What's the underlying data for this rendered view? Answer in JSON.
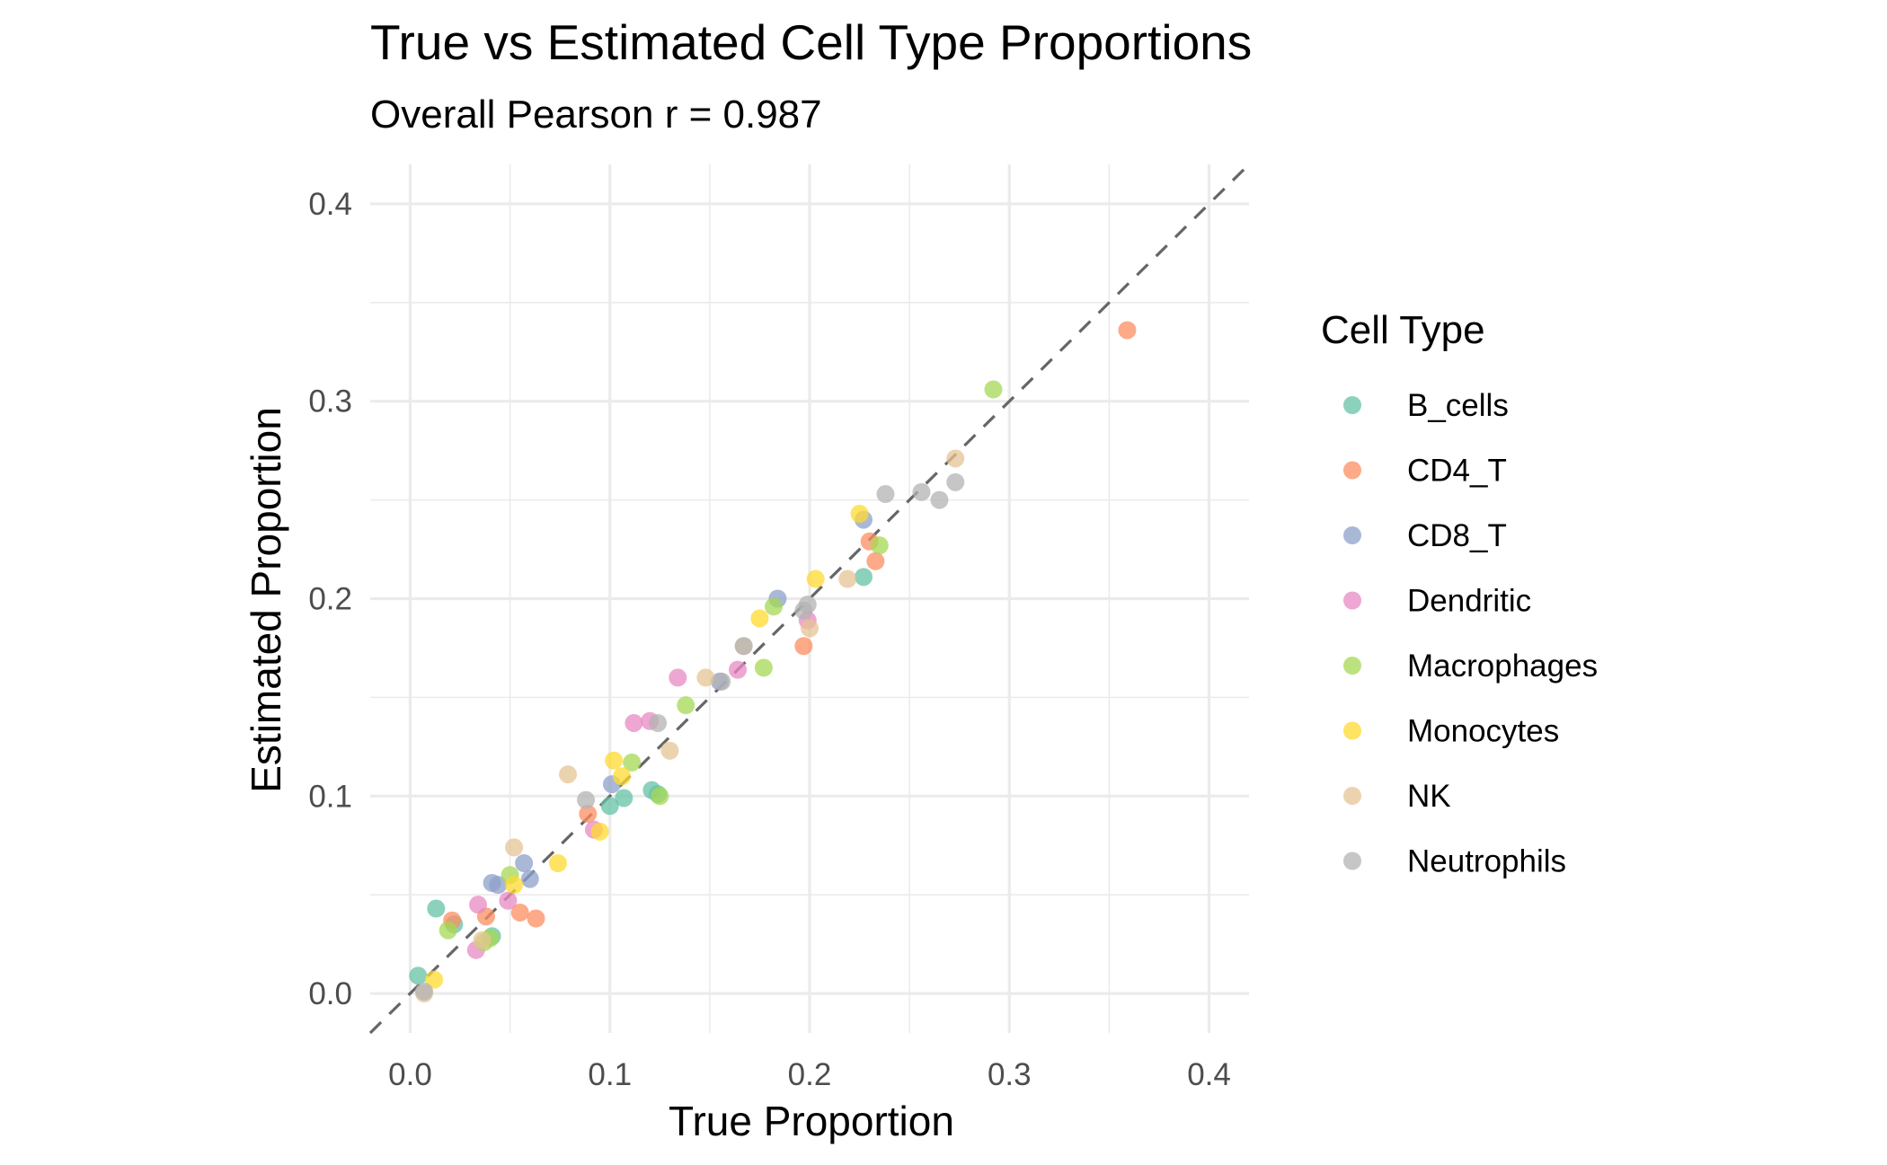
{
  "chart_data": {
    "type": "scatter",
    "title": "True vs Estimated Cell Type Proportions",
    "subtitle": "Overall Pearson r = 0.987",
    "xlabel": "True Proportion",
    "ylabel": "Estimated Proportion",
    "xlim": [
      -0.02,
      0.42
    ],
    "ylim": [
      -0.02,
      0.42
    ],
    "x_ticks": [
      0.0,
      0.1,
      0.2,
      0.3,
      0.4
    ],
    "y_ticks": [
      0.0,
      0.1,
      0.2,
      0.3,
      0.4
    ],
    "x_tick_labels": [
      "0.0",
      "0.1",
      "0.2",
      "0.3",
      "0.4"
    ],
    "y_tick_labels": [
      "0.0",
      "0.1",
      "0.2",
      "0.3",
      "0.4"
    ],
    "grid": true,
    "reference_line": "dashed y = x",
    "legend": {
      "title": "Cell Type",
      "placement": "right"
    },
    "series": [
      {
        "name": "B_cells",
        "color": "#66c2a5",
        "points": [
          [
            0.004,
            0.009
          ],
          [
            0.013,
            0.043
          ],
          [
            0.022,
            0.035
          ],
          [
            0.041,
            0.029
          ],
          [
            0.1,
            0.095
          ],
          [
            0.107,
            0.099
          ],
          [
            0.121,
            0.103
          ],
          [
            0.124,
            0.101
          ],
          [
            0.227,
            0.211
          ]
        ]
      },
      {
        "name": "CD4_T",
        "color": "#fc8d62",
        "points": [
          [
            0.021,
            0.037
          ],
          [
            0.038,
            0.039
          ],
          [
            0.055,
            0.041
          ],
          [
            0.063,
            0.038
          ],
          [
            0.089,
            0.091
          ],
          [
            0.197,
            0.176
          ],
          [
            0.23,
            0.229
          ],
          [
            0.233,
            0.219
          ],
          [
            0.359,
            0.336
          ]
        ]
      },
      {
        "name": "CD8_T",
        "color": "#8da0cb",
        "points": [
          [
            0.041,
            0.056
          ],
          [
            0.044,
            0.055
          ],
          [
            0.057,
            0.066
          ],
          [
            0.06,
            0.058
          ],
          [
            0.101,
            0.106
          ],
          [
            0.155,
            0.158
          ],
          [
            0.184,
            0.2
          ],
          [
            0.227,
            0.24
          ]
        ]
      },
      {
        "name": "Dendritic",
        "color": "#e78ac3",
        "points": [
          [
            0.033,
            0.022
          ],
          [
            0.034,
            0.045
          ],
          [
            0.049,
            0.047
          ],
          [
            0.092,
            0.083
          ],
          [
            0.112,
            0.137
          ],
          [
            0.12,
            0.138
          ],
          [
            0.134,
            0.16
          ],
          [
            0.164,
            0.164
          ],
          [
            0.199,
            0.189
          ]
        ]
      },
      {
        "name": "Macrophages",
        "color": "#a6d854",
        "points": [
          [
            0.019,
            0.032
          ],
          [
            0.037,
            0.026
          ],
          [
            0.04,
            0.028
          ],
          [
            0.05,
            0.06
          ],
          [
            0.111,
            0.117
          ],
          [
            0.125,
            0.1
          ],
          [
            0.138,
            0.146
          ],
          [
            0.177,
            0.165
          ],
          [
            0.182,
            0.196
          ],
          [
            0.235,
            0.227
          ],
          [
            0.292,
            0.306
          ]
        ]
      },
      {
        "name": "Monocytes",
        "color": "#ffd92f",
        "points": [
          [
            0.012,
            0.007
          ],
          [
            0.052,
            0.055
          ],
          [
            0.074,
            0.066
          ],
          [
            0.095,
            0.082
          ],
          [
            0.102,
            0.118
          ],
          [
            0.106,
            0.11
          ],
          [
            0.175,
            0.19
          ],
          [
            0.203,
            0.21
          ],
          [
            0.225,
            0.243
          ]
        ]
      },
      {
        "name": "NK",
        "color": "#e5c494",
        "points": [
          [
            0.007,
            0.0
          ],
          [
            0.036,
            0.027
          ],
          [
            0.052,
            0.074
          ],
          [
            0.079,
            0.111
          ],
          [
            0.13,
            0.123
          ],
          [
            0.148,
            0.16
          ],
          [
            0.167,
            0.176
          ],
          [
            0.2,
            0.185
          ],
          [
            0.219,
            0.21
          ],
          [
            0.273,
            0.271
          ]
        ]
      },
      {
        "name": "Neutrophils",
        "color": "#b3b3b3",
        "points": [
          [
            0.007,
            0.001
          ],
          [
            0.088,
            0.098
          ],
          [
            0.124,
            0.137
          ],
          [
            0.156,
            0.158
          ],
          [
            0.167,
            0.176
          ],
          [
            0.197,
            0.194
          ],
          [
            0.199,
            0.197
          ],
          [
            0.238,
            0.253
          ],
          [
            0.256,
            0.254
          ],
          [
            0.265,
            0.25
          ],
          [
            0.273,
            0.259
          ]
        ]
      }
    ]
  }
}
